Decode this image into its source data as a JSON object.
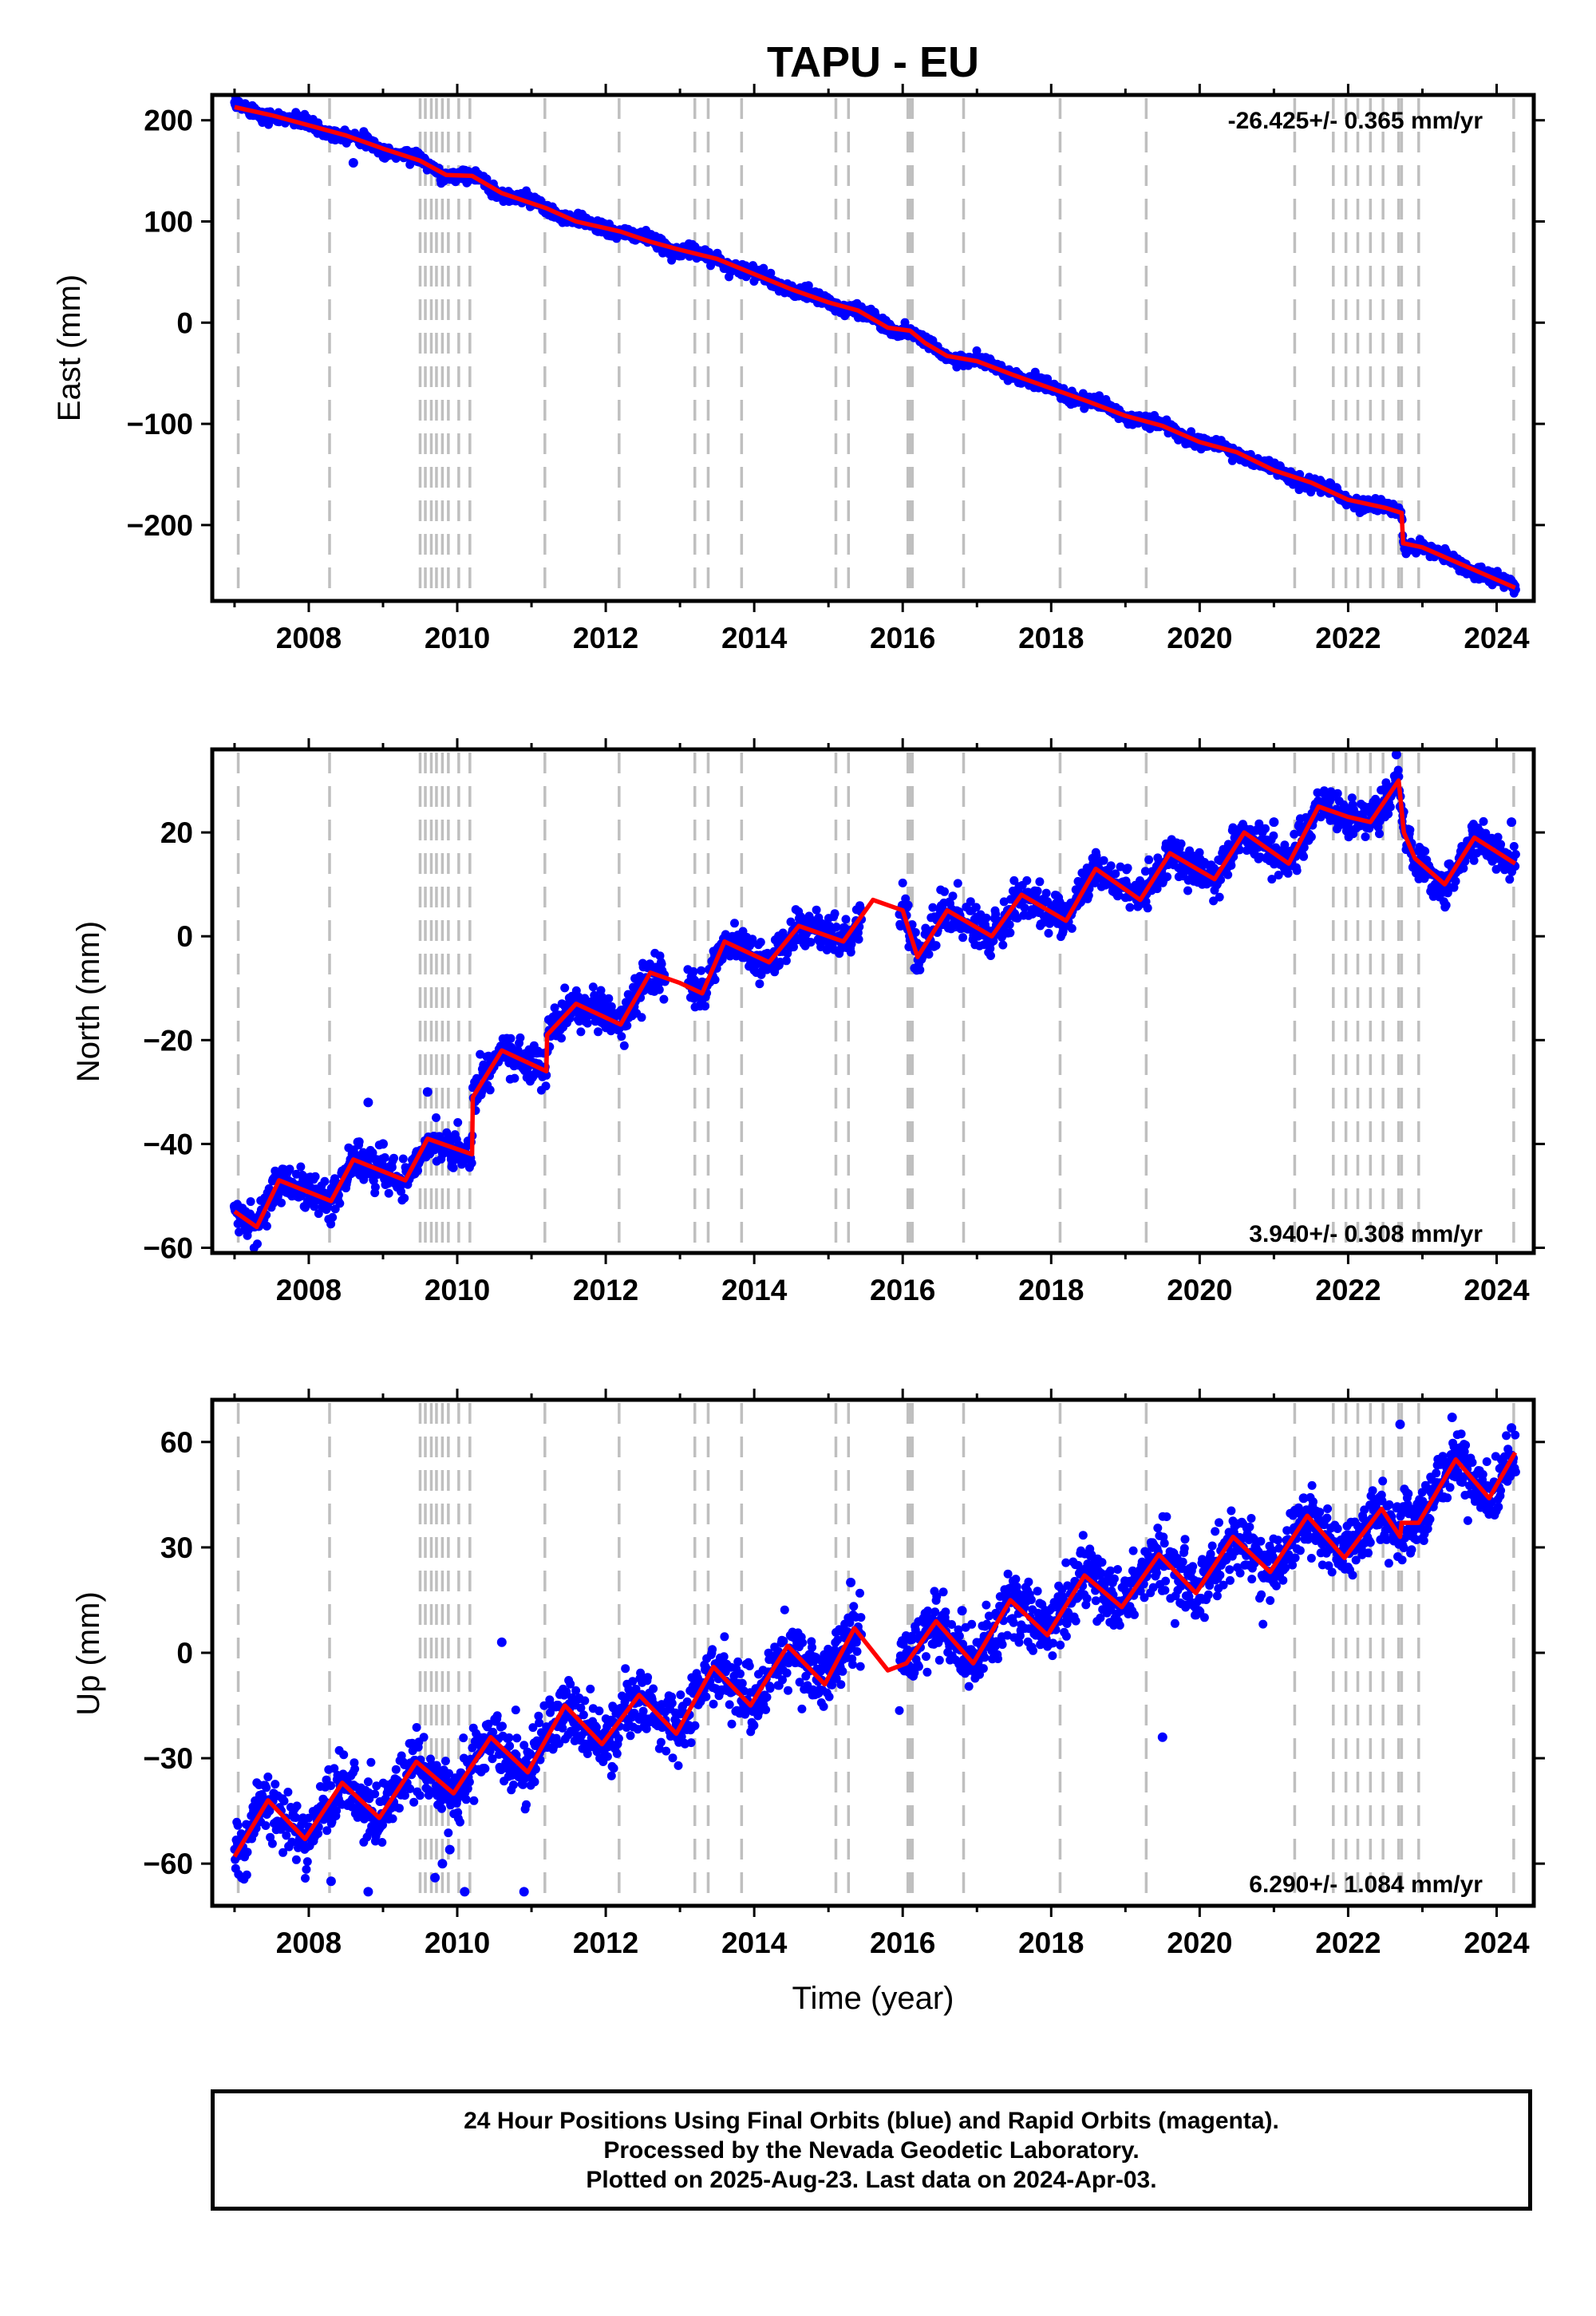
{
  "title": "TAPU - EU",
  "footer": {
    "lines": [
      "24 Hour Positions Using Final Orbits (blue) and Rapid Orbits (magenta).",
      "Processed by the Nevada Geodetic Laboratory.",
      "Plotted on 2025-Aug-23. Last data on 2024-Apr-03."
    ]
  },
  "colors": {
    "data_points": "#0000ff",
    "model_fit": "#ff0000",
    "event_lines": "#bfbfbf",
    "frame": "#000000"
  },
  "chart_data": [
    {
      "type": "scatter",
      "name": "east",
      "title": "TAPU - EU",
      "xlabel": "",
      "ylabel": "East (mm)",
      "xlim": [
        2006.7,
        2024.5
      ],
      "ylim": [
        -275,
        225
      ],
      "xticks": [
        2008,
        2010,
        2012,
        2014,
        2016,
        2018,
        2020,
        2022,
        2024
      ],
      "yticks": [
        200,
        100,
        0,
        -100,
        -200
      ],
      "ytick_labels": [
        "200",
        "100",
        "0",
        "−100",
        "−200"
      ],
      "rate_label": "-26.425+/- 0.365 mm/yr",
      "rate_position": "top-right",
      "fit_line": [
        [
          2007.0,
          213
        ],
        [
          2007.5,
          205
        ],
        [
          2008.0,
          195
        ],
        [
          2008.5,
          185
        ],
        [
          2009.0,
          172
        ],
        [
          2009.5,
          160
        ],
        [
          2009.85,
          146
        ],
        [
          2010.2,
          145
        ],
        [
          2010.6,
          128
        ],
        [
          2011.2,
          113
        ],
        [
          2011.6,
          100
        ],
        [
          2012.2,
          90
        ],
        [
          2012.6,
          80
        ],
        [
          2013.0,
          72
        ],
        [
          2013.5,
          63
        ],
        [
          2014.0,
          48
        ],
        [
          2014.5,
          33
        ],
        [
          2015.0,
          20
        ],
        [
          2015.4,
          12
        ],
        [
          2015.8,
          -5
        ],
        [
          2016.1,
          -8
        ],
        [
          2016.3,
          -20
        ],
        [
          2016.6,
          -33
        ],
        [
          2017.0,
          -38
        ],
        [
          2017.5,
          -52
        ],
        [
          2018.0,
          -65
        ],
        [
          2018.5,
          -78
        ],
        [
          2019.0,
          -92
        ],
        [
          2019.5,
          -102
        ],
        [
          2020.0,
          -118
        ],
        [
          2020.5,
          -128
        ],
        [
          2021.0,
          -146
        ],
        [
          2021.5,
          -158
        ],
        [
          2022.0,
          -175
        ],
        [
          2022.5,
          -183
        ],
        [
          2022.72,
          -188
        ],
        [
          2022.74,
          -218
        ],
        [
          2023.0,
          -222
        ],
        [
          2023.5,
          -238
        ],
        [
          2024.0,
          -254
        ],
        [
          2024.25,
          -262
        ]
      ],
      "wiggle_amplitude": 2.5,
      "noise": 3,
      "outliers": [
        [
          2008.6,
          158
        ],
        [
          2007.3,
          208
        ]
      ],
      "gaps": []
    },
    {
      "type": "scatter",
      "name": "north",
      "xlabel": "",
      "ylabel": "North (mm)",
      "xlim": [
        2006.7,
        2024.5
      ],
      "ylim": [
        -61,
        36
      ],
      "xticks": [
        2008,
        2010,
        2012,
        2014,
        2016,
        2018,
        2020,
        2022,
        2024
      ],
      "yticks": [
        20,
        0,
        -20,
        -40,
        -60
      ],
      "ytick_labels": [
        "20",
        "0",
        "−20",
        "−40",
        "−60"
      ],
      "rate_label": "3.940+/- 0.308 mm/yr",
      "rate_position": "bottom-right",
      "fit_line": [
        [
          2007.0,
          -53
        ],
        [
          2007.3,
          -56
        ],
        [
          2007.6,
          -47
        ],
        [
          2008.3,
          -51
        ],
        [
          2008.6,
          -43
        ],
        [
          2009.3,
          -47
        ],
        [
          2009.6,
          -39
        ],
        [
          2010.2,
          -42
        ],
        [
          2010.21,
          -31
        ],
        [
          2010.6,
          -22
        ],
        [
          2011.2,
          -26
        ],
        [
          2011.21,
          -19
        ],
        [
          2011.6,
          -13
        ],
        [
          2012.2,
          -17
        ],
        [
          2012.6,
          -7
        ],
        [
          2013.0,
          -9
        ],
        [
          2013.3,
          -11
        ],
        [
          2013.6,
          -1
        ],
        [
          2014.2,
          -5
        ],
        [
          2014.6,
          2
        ],
        [
          2015.2,
          -1
        ],
        [
          2015.6,
          7
        ],
        [
          2016.0,
          5
        ],
        [
          2016.2,
          -4
        ],
        [
          2016.6,
          5
        ],
        [
          2017.2,
          0
        ],
        [
          2017.6,
          8
        ],
        [
          2018.2,
          3
        ],
        [
          2018.6,
          13
        ],
        [
          2019.2,
          7
        ],
        [
          2019.6,
          16
        ],
        [
          2020.2,
          11
        ],
        [
          2020.6,
          20
        ],
        [
          2021.2,
          14
        ],
        [
          2021.6,
          25
        ],
        [
          2022.0,
          23
        ],
        [
          2022.3,
          22
        ],
        [
          2022.68,
          30
        ],
        [
          2022.75,
          20
        ],
        [
          2022.9,
          15
        ],
        [
          2023.3,
          10
        ],
        [
          2023.7,
          19
        ],
        [
          2024.25,
          14
        ]
      ],
      "wiggle_amplitude": 0,
      "noise": 1.8,
      "outliers": [
        [
          2008.8,
          -32
        ],
        [
          2009.6,
          -30
        ],
        [
          2009.0,
          -40
        ],
        [
          2024.2,
          22
        ],
        [
          2021.0,
          22
        ],
        [
          2022.65,
          35
        ],
        [
          2007.0,
          -52
        ]
      ],
      "gaps": [
        [
          2012.8,
          2013.1
        ],
        [
          2015.45,
          2015.95
        ]
      ]
    },
    {
      "type": "scatter",
      "name": "up",
      "xlabel": "Time (year)",
      "ylabel": "Up (mm)",
      "xlim": [
        2006.7,
        2024.5
      ],
      "ylim": [
        -72,
        72
      ],
      "xticks": [
        2008,
        2010,
        2012,
        2014,
        2016,
        2018,
        2020,
        2022,
        2024
      ],
      "yticks": [
        60,
        30,
        0,
        -30,
        -60
      ],
      "ytick_labels": [
        "60",
        "30",
        "0",
        "−30",
        "−60"
      ],
      "rate_label": "6.290+/- 1.084 mm/yr",
      "rate_position": "bottom-right",
      "fit_line": [
        [
          2007.0,
          -58
        ],
        [
          2007.45,
          -42
        ],
        [
          2007.95,
          -53
        ],
        [
          2008.45,
          -37
        ],
        [
          2008.95,
          -47
        ],
        [
          2009.45,
          -31
        ],
        [
          2009.95,
          -40
        ],
        [
          2010.45,
          -24
        ],
        [
          2010.95,
          -34
        ],
        [
          2011.45,
          -15
        ],
        [
          2011.95,
          -26
        ],
        [
          2012.45,
          -12
        ],
        [
          2012.95,
          -23
        ],
        [
          2013.45,
          -4
        ],
        [
          2013.95,
          -15
        ],
        [
          2014.45,
          2
        ],
        [
          2014.95,
          -9
        ],
        [
          2015.35,
          7
        ],
        [
          2015.8,
          -5
        ],
        [
          2016.05,
          -3
        ],
        [
          2016.45,
          9
        ],
        [
          2016.95,
          -3
        ],
        [
          2017.45,
          15
        ],
        [
          2017.95,
          5
        ],
        [
          2018.45,
          22
        ],
        [
          2018.95,
          13
        ],
        [
          2019.45,
          28
        ],
        [
          2019.95,
          17
        ],
        [
          2020.45,
          33
        ],
        [
          2020.95,
          23
        ],
        [
          2021.45,
          39
        ],
        [
          2021.95,
          27
        ],
        [
          2022.45,
          41
        ],
        [
          2022.7,
          33
        ],
        [
          2022.72,
          37
        ],
        [
          2022.95,
          37
        ],
        [
          2023.45,
          55
        ],
        [
          2023.9,
          44
        ],
        [
          2024.25,
          57
        ]
      ],
      "wiggle_amplitude": 0,
      "noise": 4.5,
      "outliers": [
        [
          2007.1,
          -64
        ],
        [
          2008.3,
          -65
        ],
        [
          2008.8,
          -68
        ],
        [
          2009.8,
          -60
        ],
        [
          2009.7,
          -64
        ],
        [
          2010.1,
          -68
        ],
        [
          2010.9,
          -68
        ],
        [
          2009.9,
          -56
        ],
        [
          2010.6,
          3
        ],
        [
          2019.5,
          -24
        ],
        [
          2021.4,
          44
        ],
        [
          2022.7,
          65
        ],
        [
          2023.4,
          67
        ],
        [
          2024.2,
          64
        ],
        [
          2015.3,
          20
        ],
        [
          2016.8,
          12
        ]
      ],
      "gaps": [
        [
          2015.45,
          2015.95
        ]
      ]
    }
  ],
  "event_lines_years": [
    2007.05,
    2008.28,
    2009.5,
    2009.57,
    2009.65,
    2009.72,
    2009.8,
    2009.88,
    2010.02,
    2010.17,
    2011.18,
    2012.18,
    2013.2,
    2013.38,
    2013.83,
    2015.1,
    2015.27,
    2016.07,
    2016.1,
    2016.13,
    2016.82,
    2018.12,
    2019.28,
    2021.28,
    2021.8,
    2021.97,
    2022.13,
    2022.3,
    2022.47,
    2022.68,
    2022.72,
    2022.95,
    2024.23
  ]
}
